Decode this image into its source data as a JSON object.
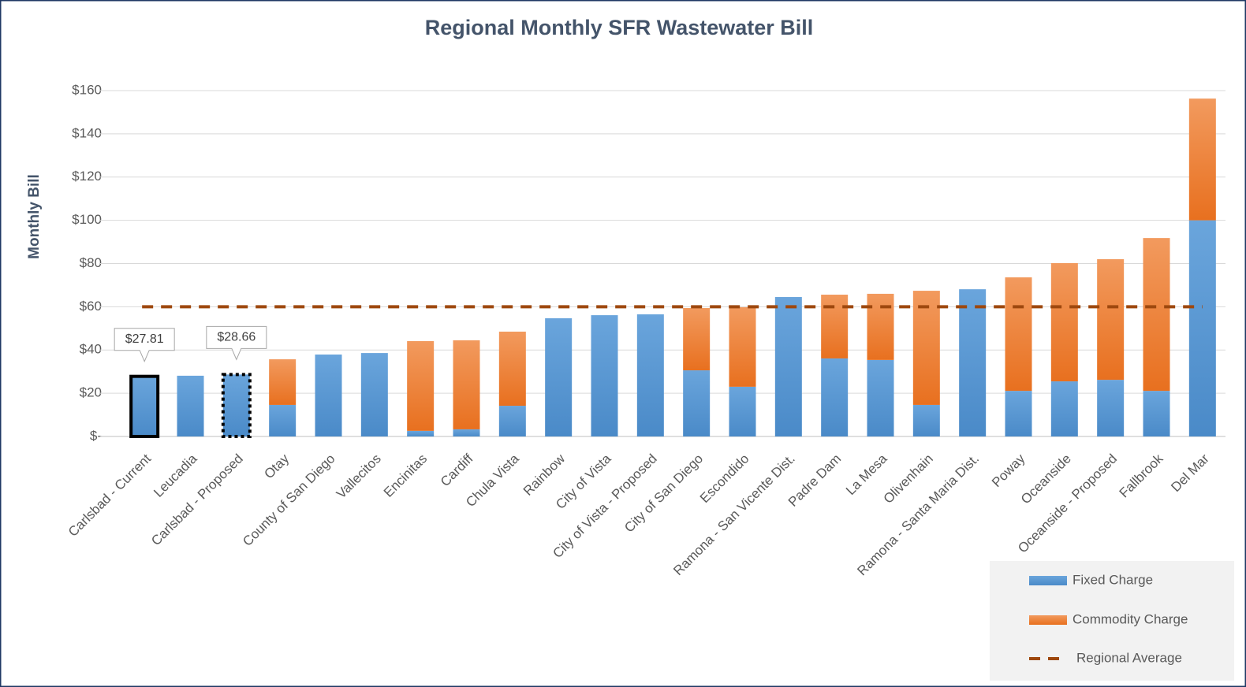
{
  "chart_data": {
    "type": "stacked-bar",
    "title": "Regional Monthly SFR Wastewater Bill",
    "y_axis_label": "Monthly Bill",
    "categories": [
      "Carlsbad - Current",
      "Leucadia",
      "Carlsbad - Proposed",
      "Otay",
      "County of San Diego",
      "Vallecitos",
      "Encinitas",
      "Cardiff",
      "Chula Vista",
      "Rainbow",
      "City of Vista",
      "City of Vista - Proposed",
      "City of San Diego",
      "Escondido",
      "Ramona - San Vicente Dist.",
      "Padre Dam",
      "La Mesa",
      "Olivenhain",
      "Ramona - Santa Maria Dist.",
      "Poway",
      "Oceanside",
      "Oceanside - Proposed",
      "Fallbrook",
      "Del Mar"
    ],
    "series": [
      {
        "name": "Fixed Charge",
        "color": "#5b9bd5",
        "values": [
          27.81,
          28.1,
          28.66,
          14.6,
          37.9,
          38.6,
          2.6,
          3.3,
          14.2,
          54.7,
          56.1,
          56.5,
          30.6,
          23.0,
          64.5,
          36.1,
          35.4,
          14.6,
          68.1,
          21.1,
          25.5,
          26.2,
          21.1,
          100
        ],
        "value_labels": [
          "$27.81",
          null,
          "$28.66",
          null,
          null,
          null,
          null,
          null,
          null,
          null,
          null,
          null,
          null,
          null,
          null,
          null,
          null,
          null,
          null,
          null,
          null,
          null,
          null,
          null
        ]
      },
      {
        "name": "Commodity Charge",
        "color": "#ed7d31",
        "values": [
          0,
          0,
          0,
          21.1,
          0,
          0,
          41.5,
          41.2,
          34.3,
          0,
          0,
          0,
          28.8,
          36.8,
          0,
          29.5,
          30.6,
          52.8,
          0,
          52.5,
          54.7,
          55.8,
          70.7,
          56.3
        ]
      }
    ],
    "reference_line": {
      "name": "Regional Average",
      "value": 60,
      "color": "#9e480e"
    },
    "ylim": [
      0,
      160
    ],
    "yticks": [
      {
        "value": 0,
        "label": "$-"
      },
      {
        "value": 20,
        "label": "$20"
      },
      {
        "value": 40,
        "label": "$40"
      },
      {
        "value": 60,
        "label": "$60"
      },
      {
        "value": 80,
        "label": "$80"
      },
      {
        "value": 100,
        "label": "$100"
      },
      {
        "value": 120,
        "label": "$120"
      },
      {
        "value": 140,
        "label": "$140"
      },
      {
        "value": 160,
        "label": "$160"
      }
    ],
    "grid": true,
    "legend": "bottom-right"
  }
}
